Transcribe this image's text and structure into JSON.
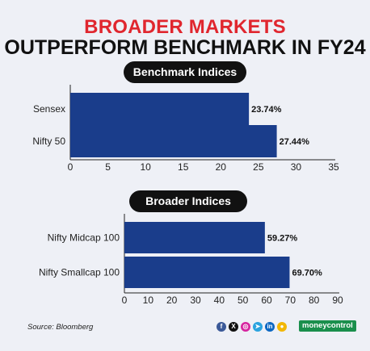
{
  "title": {
    "line1": "BROADER MARKETS",
    "line2": "OUTPERFORM BENCHMARK IN FY24"
  },
  "chart_data": [
    {
      "type": "bar",
      "orientation": "horizontal",
      "title": "Benchmark Indices",
      "categories": [
        "Sensex",
        "Nifty 50"
      ],
      "values": [
        23.74,
        27.44
      ],
      "value_labels": [
        "23.74%",
        "27.44%"
      ],
      "xlim": [
        0,
        35
      ],
      "ticks": [
        0,
        5,
        10,
        15,
        20,
        25,
        30,
        35
      ],
      "bar_color": "#1a3d8b",
      "grid": false
    },
    {
      "type": "bar",
      "orientation": "horizontal",
      "title": "Broader Indices",
      "categories": [
        "Nifty Midcap 100",
        "Nifty Smallcap 100"
      ],
      "values": [
        59.27,
        69.7
      ],
      "value_labels": [
        "59.27%",
        "69.70%"
      ],
      "xlim": [
        0,
        90
      ],
      "ticks": [
        0,
        10,
        20,
        30,
        40,
        50,
        60,
        70,
        80,
        90
      ],
      "bar_color": "#1a3d8b",
      "grid": false
    }
  ],
  "footer": {
    "source": "Source: Bloomberg",
    "brand": "moneycontrol",
    "social_icons": [
      "facebook-icon",
      "x-icon",
      "instagram-icon",
      "telegram-icon",
      "linkedin-icon",
      "koo-icon"
    ]
  },
  "colors": {
    "title_accent": "#e0262e",
    "bar": "#1a3d8b",
    "background": "#eef0f6"
  }
}
